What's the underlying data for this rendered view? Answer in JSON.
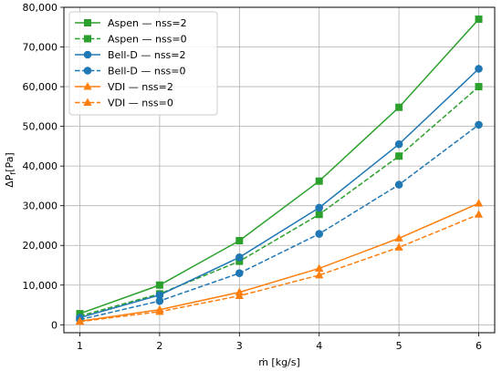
{
  "chart_data": {
    "type": "line",
    "xlabel": "ṁ [kg/s]",
    "ylabel": "ΔP",
    "ylabel_sub": "f",
    "ylabel_unit": "[Pa]",
    "x": [
      1,
      2,
      3,
      4,
      5,
      6
    ],
    "xlim": [
      0.8,
      6.2
    ],
    "ylim": [
      -2000,
      80000
    ],
    "xticks": [
      "1",
      "2",
      "3",
      "4",
      "5",
      "6"
    ],
    "yticks": [
      {
        "value": 0,
        "label": "0"
      },
      {
        "value": 10000,
        "label": "10,000"
      },
      {
        "value": 20000,
        "label": "20,000"
      },
      {
        "value": 30000,
        "label": "30,000"
      },
      {
        "value": 40000,
        "label": "40,000"
      },
      {
        "value": 50000,
        "label": "50,000"
      },
      {
        "value": 60000,
        "label": "60,000"
      },
      {
        "value": 70000,
        "label": "70,000"
      },
      {
        "value": 80000,
        "label": "80,000"
      }
    ],
    "grid": true,
    "legend_position": "top-left",
    "series": [
      {
        "name": "Aspen — nss=2",
        "color": "#2ca02c",
        "dashed": false,
        "marker": "square",
        "values": [
          2800,
          10000,
          21200,
          36200,
          54800,
          77000
        ]
      },
      {
        "name": "Aspen — nss=0",
        "color": "#2ca02c",
        "dashed": true,
        "marker": "square",
        "values": [
          2200,
          7800,
          16000,
          27800,
          42500,
          60000
        ]
      },
      {
        "name": "Bell-D — nss=2",
        "color": "#1f77b4",
        "dashed": false,
        "marker": "circle",
        "values": [
          1800,
          7500,
          17000,
          29500,
          45500,
          64500
        ]
      },
      {
        "name": "Bell-D — nss=0",
        "color": "#1f77b4",
        "dashed": true,
        "marker": "circle",
        "values": [
          1300,
          6000,
          13000,
          22900,
          35300,
          50400
        ]
      },
      {
        "name": "VDI — nss=2",
        "color": "#ff7f0e",
        "dashed": false,
        "marker": "triangle",
        "values": [
          900,
          3800,
          8200,
          14200,
          21800,
          30600
        ]
      },
      {
        "name": "VDI — nss=0",
        "color": "#ff7f0e",
        "dashed": true,
        "marker": "triangle",
        "values": [
          800,
          3300,
          7300,
          12500,
          19500,
          27800
        ]
      }
    ]
  }
}
